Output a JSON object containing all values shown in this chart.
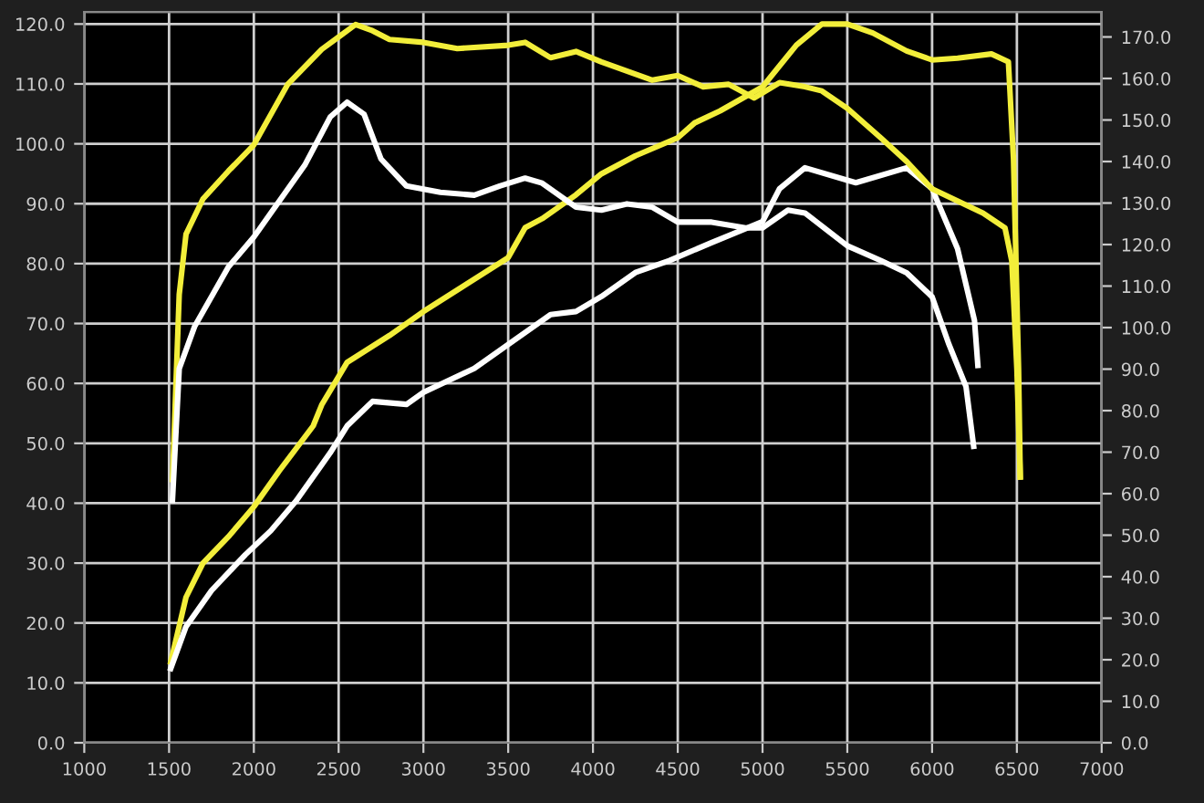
{
  "chart_data": {
    "type": "line",
    "xlim": [
      1000,
      7000
    ],
    "xticks": [
      1000,
      1500,
      2000,
      2500,
      3000,
      3500,
      4000,
      4500,
      5000,
      5500,
      6000,
      6500,
      7000
    ],
    "ylim": [
      0,
      122
    ],
    "yticks": [
      {
        "value": 0,
        "label": "0.0"
      },
      {
        "value": 10,
        "label": "10.0"
      },
      {
        "value": 20,
        "label": "20.0"
      },
      {
        "value": 30,
        "label": "30.0"
      },
      {
        "value": 40,
        "label": "40.0"
      },
      {
        "value": 50,
        "label": "50.0"
      },
      {
        "value": 60,
        "label": "60.0"
      },
      {
        "value": 70,
        "label": "70.0"
      },
      {
        "value": 80,
        "label": "80.0"
      },
      {
        "value": 90,
        "label": "90.0"
      },
      {
        "value": 100,
        "label": "100.0"
      },
      {
        "value": 110,
        "label": "110.0"
      },
      {
        "value": 120,
        "label": "120.0"
      }
    ],
    "y2lim": [
      0,
      176
    ],
    "y2ticks": [
      {
        "value": 0,
        "label": "0.0"
      },
      {
        "value": 10,
        "label": "10.0"
      },
      {
        "value": 20,
        "label": "20.0"
      },
      {
        "value": 30,
        "label": "30.0"
      },
      {
        "value": 40,
        "label": "40.0"
      },
      {
        "value": 50,
        "label": "50.0"
      },
      {
        "value": 60,
        "label": "60.0"
      },
      {
        "value": 70,
        "label": "70.0"
      },
      {
        "value": 80,
        "label": "80.0"
      },
      {
        "value": 90,
        "label": "90.0"
      },
      {
        "value": 100,
        "label": "100.0"
      },
      {
        "value": 110,
        "label": "110.0"
      },
      {
        "value": 120,
        "label": "120.0"
      },
      {
        "value": 130,
        "label": "130.0"
      },
      {
        "value": 140,
        "label": "140.0"
      },
      {
        "value": 150,
        "label": "150.0"
      },
      {
        "value": 160,
        "label": "160.0"
      },
      {
        "value": 170,
        "label": "170.0"
      }
    ],
    "grid": true,
    "line_style": "solid",
    "marker": "none",
    "series": [
      {
        "color": "#f2ee3a",
        "axis": "y2",
        "x": [
          1520,
          1560,
          1600,
          1700,
          1850,
          2000,
          2200,
          2400,
          2500,
          2600,
          2700,
          2800,
          3000,
          3200,
          3500,
          3600,
          3750,
          3900,
          4050,
          4350,
          4500,
          4650,
          4800,
          4950,
          5100,
          5250,
          5350,
          5500,
          5700,
          5850,
          6000,
          6150,
          6300,
          6430,
          6470,
          6500,
          6520
        ],
        "values": [
          63.4,
          108,
          122.5,
          131,
          137.7,
          144,
          158.6,
          167,
          170,
          173,
          171.5,
          169.4,
          168.7,
          167.2,
          168,
          168.7,
          165,
          166.5,
          164,
          159.6,
          160.7,
          158,
          158.6,
          155.3,
          159,
          158,
          157,
          152.8,
          145.6,
          140,
          133.4,
          130.5,
          127.6,
          124,
          116,
          90,
          64
        ]
      },
      {
        "color": "#ffffff",
        "axis": "y2",
        "x": [
          1520,
          1560,
          1650,
          1850,
          2000,
          2100,
          2300,
          2450,
          2550,
          2650,
          2750,
          2900,
          3100,
          3300,
          3450,
          3600,
          3700,
          3900,
          4050,
          4200,
          4350,
          4500,
          4700,
          4900,
          5000,
          5150,
          5250,
          5500,
          5700,
          5850,
          6000,
          6100,
          6200,
          6245
        ],
        "values": [
          58.4,
          90.1,
          100.2,
          114.6,
          121.8,
          127.6,
          139.1,
          150.7,
          154.3,
          151.4,
          140.6,
          134.1,
          132.6,
          131.9,
          134.1,
          136,
          134.8,
          129,
          128.3,
          129.8,
          129,
          125.4,
          125.4,
          124,
          124,
          128.3,
          127.6,
          119.7,
          116.1,
          113.2,
          107.4,
          95.9,
          85.8,
          71.4
        ]
      },
      {
        "color": "#f2ee3a",
        "x": [
          1510,
          1600,
          1700,
          1850,
          2000,
          2150,
          2350,
          2400,
          2550,
          2800,
          3000,
          3250,
          3500,
          3600,
          3700,
          3900,
          4050,
          4250,
          4500,
          4600,
          4750,
          5000,
          5100,
          5200,
          5350,
          5500,
          5650,
          5850,
          6000,
          6150,
          6350,
          6450,
          6480,
          6510,
          6520
        ],
        "values": [
          13.5,
          24.3,
          30,
          34.4,
          39.4,
          45.4,
          52.9,
          56.4,
          63.5,
          68,
          72,
          76.5,
          81,
          86,
          87.5,
          91.5,
          95,
          98,
          101,
          103.5,
          105.5,
          109.5,
          113,
          116.5,
          120,
          120,
          118.5,
          115.5,
          114,
          114.3,
          115,
          113.7,
          97.5,
          62.5,
          44.4
        ]
      },
      {
        "color": "#ffffff",
        "x": [
          1510,
          1600,
          1750,
          1950,
          2100,
          2250,
          2450,
          2550,
          2700,
          2900,
          3000,
          3300,
          3500,
          3750,
          3900,
          4050,
          4250,
          4450,
          4700,
          5000,
          5100,
          5250,
          5550,
          5850,
          6000,
          6150,
          6250,
          6270
        ],
        "values": [
          12.4,
          19.4,
          25.4,
          31.4,
          35.4,
          40.4,
          48.4,
          52.9,
          57,
          56.5,
          58.5,
          62.5,
          66.5,
          71.5,
          72,
          74.5,
          78.5,
          80.5,
          83.5,
          87,
          92.5,
          96,
          93.5,
          96,
          92.5,
          82.5,
          70.5,
          63
        ]
      }
    ]
  }
}
